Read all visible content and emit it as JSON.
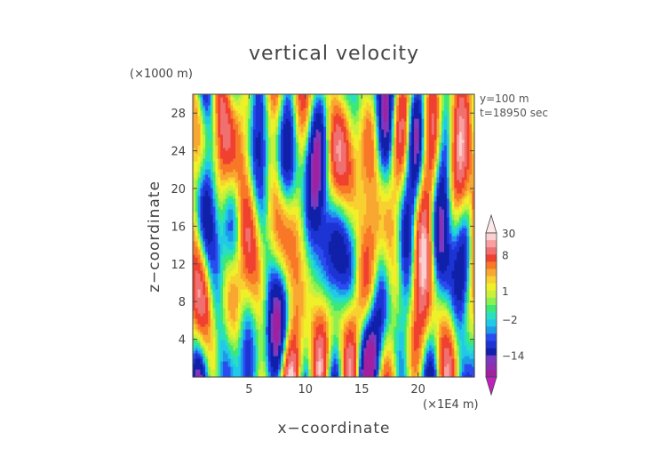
{
  "chart_data": {
    "type": "heatmap",
    "title": "vertical velocity",
    "xlabel": "x−coordinate",
    "ylabel": "z−coordinate",
    "x_unit_label": "(×1E4 m)",
    "y_unit_label": "(×1000 m)",
    "annotations": [
      "y=100 m",
      "t=18950 sec"
    ],
    "xlim": [
      0,
      25
    ],
    "ylim": [
      0,
      30
    ],
    "x_ticks": [
      5,
      10,
      15,
      20
    ],
    "y_ticks": [
      4,
      8,
      12,
      16,
      20,
      24,
      28
    ],
    "x_tick_labels": [
      "5",
      "10",
      "15",
      "20"
    ],
    "y_tick_labels": [
      "4",
      "8",
      "12",
      "16",
      "20",
      "24",
      "28"
    ],
    "colorbar": {
      "labels": [
        "30",
        "8",
        "1",
        "−2",
        "−14"
      ],
      "label_values": [
        30,
        8,
        1,
        -2,
        -14
      ],
      "levels": [
        -30,
        -22,
        -14,
        -10,
        -6,
        -4,
        -3,
        -2,
        -1,
        0,
        0.5,
        1,
        2,
        3,
        4,
        6,
        8,
        14,
        22,
        30
      ],
      "colors": [
        "#a020a0",
        "#8c2fb0",
        "#7a3ac0",
        "#1020a8",
        "#1c34d4",
        "#2a4cf0",
        "#1c9ce8",
        "#22c8e8",
        "#28e0c0",
        "#3ce878",
        "#8cf050",
        "#c8f03c",
        "#f0f028",
        "#f8d030",
        "#f8a830",
        "#f87828",
        "#f04030",
        "#f07070",
        "#f8a0a0",
        "#fcd0d0"
      ],
      "under_color": "#c020c0",
      "over_color": "#fde8e8"
    }
  }
}
